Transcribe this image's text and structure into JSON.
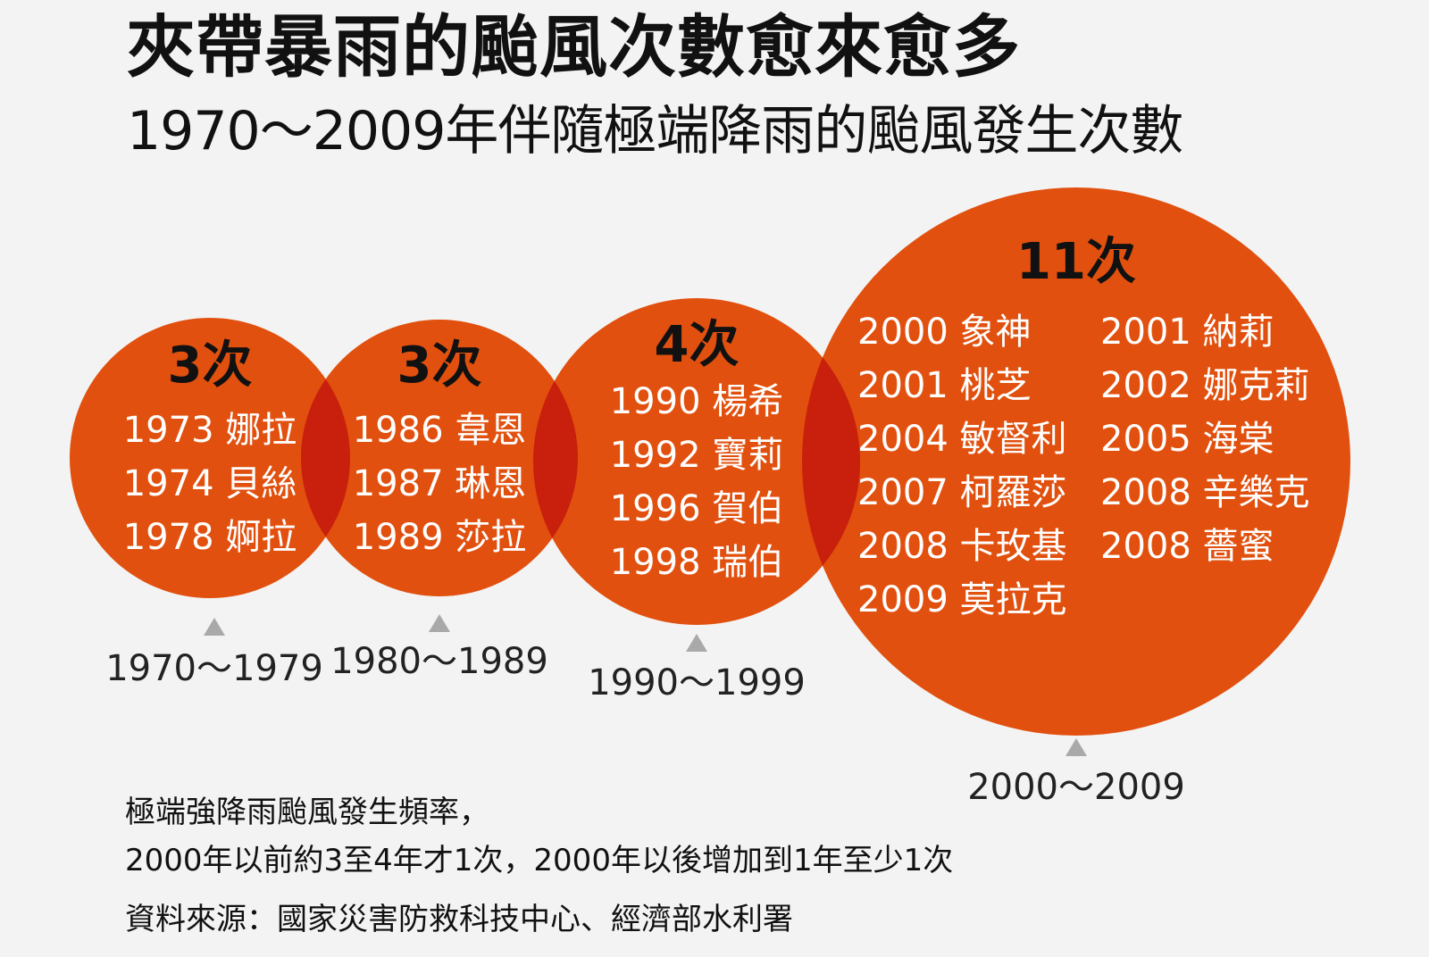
{
  "title": "夾帶暴雨的颱風次數愈來愈多",
  "subtitle": "1970～2009年伴隨極端降雨的颱風發生次數",
  "chart_data": {
    "type": "bubble",
    "categories": [
      "1970～1979",
      "1980～1989",
      "1990～1999",
      "2000～2009"
    ],
    "values": [
      3,
      3,
      4,
      11
    ],
    "count_labels": [
      "3次",
      "3次",
      "4次",
      "11次"
    ],
    "typhoons": [
      [
        "1973 娜拉",
        "1974 貝絲",
        "1978 婀拉"
      ],
      [
        "1986 韋恩",
        "1987 琳恩",
        "1989 莎拉"
      ],
      [
        "1990 楊希",
        "1992 寶莉",
        "1996 賀伯",
        "1998 瑞伯"
      ],
      [
        "2000 象神",
        "2001 桃芝",
        "2004 敏督利",
        "2007 柯羅莎",
        "2008 卡玫基",
        "2009 莫拉克",
        "2001 納莉",
        "2002 娜克莉",
        "2005 海棠",
        "2008 辛樂克",
        "2008 薔蜜"
      ]
    ],
    "colors": {
      "circle": "#e1500e",
      "overlap": "#c8200c",
      "marker": "#a9a9a9"
    }
  },
  "notes": {
    "line1": "極端強降雨颱風發生頻率，",
    "line2": "2000年以前約3至4年才1次，2000年以後增加到1年至少1次",
    "source": "資料來源：國家災害防救科技中心、經濟部水利署"
  }
}
